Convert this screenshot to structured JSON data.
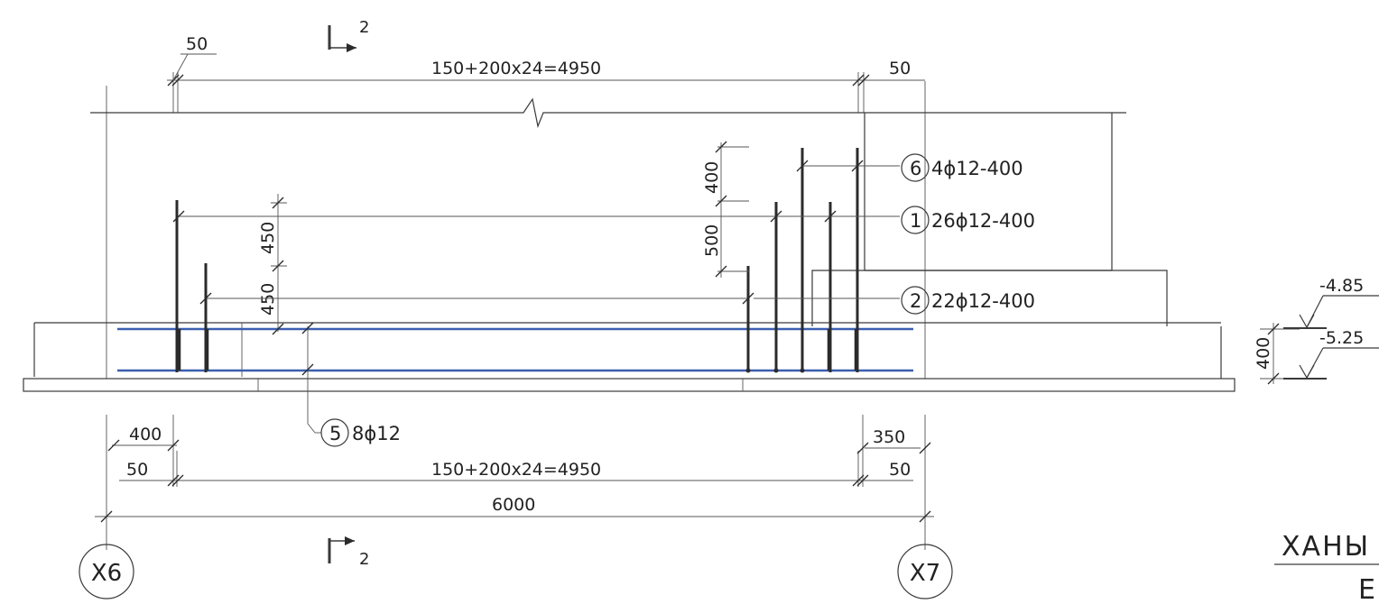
{
  "colors": {
    "ink": "#2b2b2b",
    "reinforcement_mesh": "#3b5fb0",
    "background": "#ffffff"
  },
  "section_marker": {
    "label_top": "2",
    "label_bottom": "2"
  },
  "top_dimensions": {
    "left_offset": "50",
    "span": "150+200x24=4950",
    "right_offset": "50"
  },
  "vertical_dimensions": {
    "left_upper": "450",
    "left_lower": "450",
    "right_upper": "400",
    "right_lower": "500",
    "slab_thickness": "400"
  },
  "bar_marks": [
    {
      "num": "6",
      "spec": "4ϕ12-400"
    },
    {
      "num": "1",
      "spec": "26ϕ12-400"
    },
    {
      "num": "2",
      "spec": "22ϕ12-400"
    },
    {
      "num": "5",
      "spec": "8ϕ12"
    }
  ],
  "elevations": {
    "top": "-4.85",
    "bottom": "-5.25"
  },
  "bottom_dimensions": {
    "left_400": "400",
    "left_50": "50",
    "span": "150+200x24=4950",
    "right_350": "350",
    "right_50": "50",
    "total": "6000"
  },
  "axes": {
    "left": "X6",
    "right": "X7"
  },
  "title_fragment": {
    "line1": "ХАНЫ",
    "line2": "Е"
  }
}
